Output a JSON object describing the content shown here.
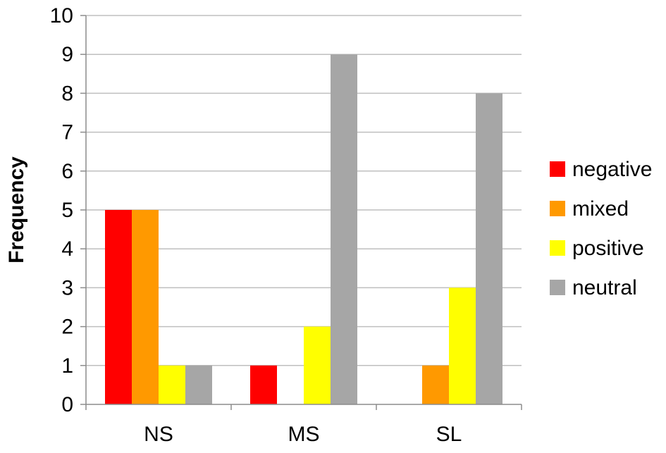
{
  "chart_data": {
    "type": "bar",
    "title": "",
    "xlabel": "",
    "ylabel": "Frequency",
    "categories": [
      "NS",
      "MS",
      "SL"
    ],
    "series": [
      {
        "name": "negative",
        "color": "#ff0000",
        "values": [
          5,
          1,
          0
        ]
      },
      {
        "name": "mixed",
        "color": "#ff9900",
        "values": [
          5,
          0,
          1
        ]
      },
      {
        "name": "positive",
        "color": "#ffff00",
        "values": [
          1,
          2,
          3
        ]
      },
      {
        "name": "neutral",
        "color": "#a6a6a6",
        "values": [
          1,
          9,
          8
        ]
      }
    ],
    "ylim": [
      0,
      10
    ],
    "yticks": [
      "0",
      "1",
      "2",
      "3",
      "4",
      "5",
      "6",
      "7",
      "8",
      "9",
      "10"
    ],
    "grid": true,
    "legend_position": "right"
  }
}
